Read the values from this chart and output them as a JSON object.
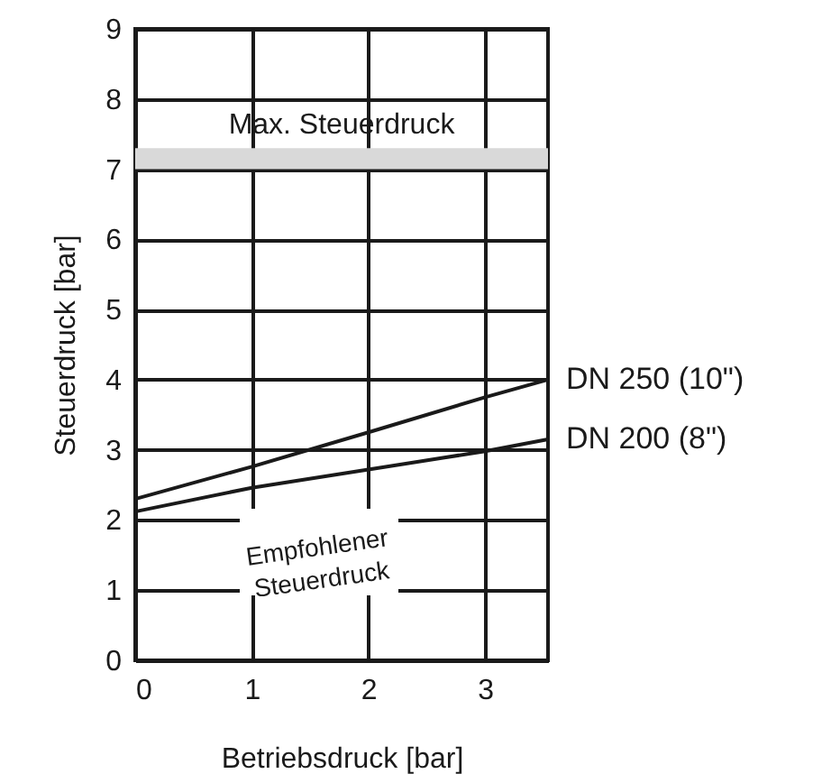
{
  "chart_data": {
    "type": "line",
    "xlabel": "Betriebsdruck [bar]",
    "ylabel": "Steuerdruck [bar]",
    "x": [
      0,
      1,
      2,
      3,
      3.54
    ],
    "series": [
      {
        "name": "DN 250 (10\")",
        "color": "#1a1a1a",
        "values": [
          2.3,
          2.76,
          3.25,
          3.75,
          4.0
        ]
      },
      {
        "name": "DN 200 (8\")",
        "color": "#1a1a1a",
        "values": [
          2.12,
          2.46,
          2.72,
          2.98,
          3.15
        ]
      }
    ],
    "xlim": [
      0,
      3.54
    ],
    "xticks": [
      0,
      1,
      2,
      3
    ],
    "ylim": [
      0,
      9
    ],
    "yticks": [
      0,
      1,
      2,
      3,
      4,
      5,
      6,
      7,
      8,
      9
    ],
    "bands": [
      {
        "axis": "y",
        "from": 7.0,
        "to": 7.3,
        "label": "Max. Steuerdruck",
        "color": "#d9d9d9"
      }
    ],
    "annotations": [
      "Empfohlener\nSteuerdruck"
    ],
    "grid": true,
    "legend": false,
    "marker": "none",
    "line_style": "solid"
  }
}
